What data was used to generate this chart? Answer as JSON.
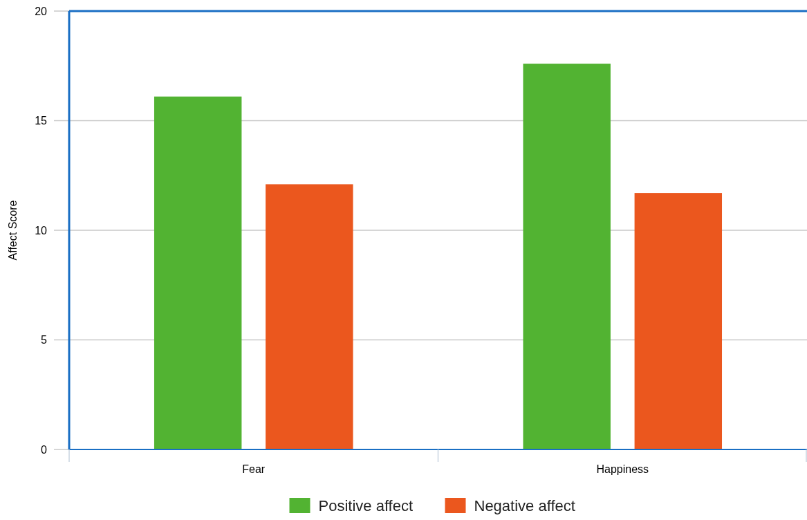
{
  "chart_data": {
    "type": "bar",
    "ylabel": "Affect Score",
    "categories": [
      "Fear",
      "Happiness"
    ],
    "series": [
      {
        "name": "Positive affect",
        "color": "#52b332",
        "values": [
          16.1,
          17.6
        ]
      },
      {
        "name": "Negative affect",
        "color": "#eb571e",
        "values": [
          12.1,
          11.7
        ]
      }
    ],
    "ylim": [
      0,
      20
    ],
    "yticks": [
      0,
      5,
      10,
      15,
      20
    ],
    "grid": "y",
    "legend": "bottom"
  }
}
